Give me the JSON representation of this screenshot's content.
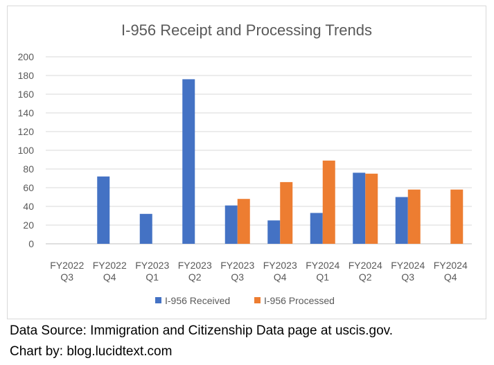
{
  "chart_data": {
    "type": "bar",
    "title": "I-956 Receipt and Processing Trends",
    "xlabel": "",
    "ylabel": "",
    "ylim": [
      0,
      200
    ],
    "yticks": [
      0,
      20,
      40,
      60,
      80,
      100,
      120,
      140,
      160,
      180,
      200
    ],
    "grid": true,
    "legend_position": "bottom",
    "categories": [
      [
        "FY2022",
        "Q3"
      ],
      [
        "FY2022",
        "Q4"
      ],
      [
        "FY2023",
        "Q1"
      ],
      [
        "FY2023",
        "Q2"
      ],
      [
        "FY2023",
        "Q3"
      ],
      [
        "FY2023",
        "Q4"
      ],
      [
        "FY2024",
        "Q1"
      ],
      [
        "FY2024",
        "Q2"
      ],
      [
        "FY2024",
        "Q3"
      ],
      [
        "FY2024",
        "Q4"
      ]
    ],
    "series": [
      {
        "name": "I-956 Received",
        "color": "#4472c4",
        "values": [
          null,
          72,
          32,
          176,
          41,
          25,
          33,
          76,
          50,
          null
        ]
      },
      {
        "name": "I-956 Processed",
        "color": "#ed7d31",
        "values": [
          null,
          null,
          null,
          null,
          48,
          66,
          89,
          75,
          58,
          58
        ]
      }
    ]
  },
  "captions": {
    "source": "Data Source: Immigration and Citizenship Data page at uscis.gov.",
    "credit": "Chart by: blog.lucidtext.com"
  }
}
